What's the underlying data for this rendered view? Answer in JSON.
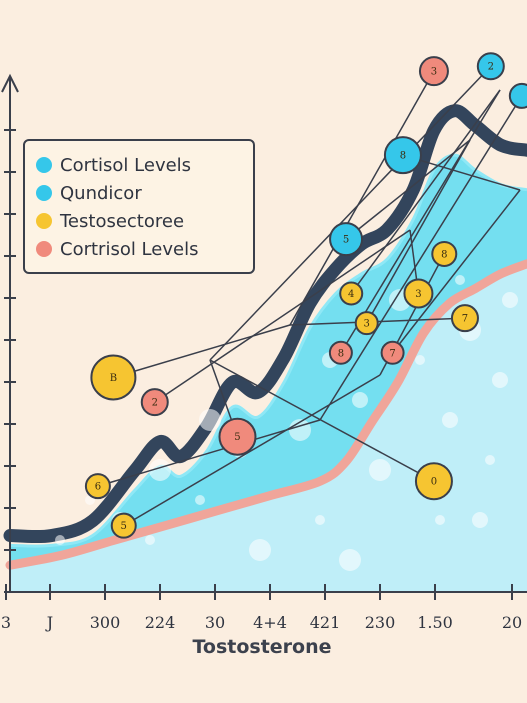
{
  "chart_data": {
    "type": "area",
    "title": "",
    "xlabel": "Tostosterone",
    "ylabel": "",
    "x_tick_labels": [
      "3",
      "J",
      "300",
      "224",
      "30",
      "4+4",
      "421",
      "230",
      "1.50",
      "20"
    ],
    "legend": {
      "placement": "top-left",
      "entries": [
        {
          "label": "Cortisol Levels",
          "color": "#35c7ea"
        },
        {
          "label": "Qundicor",
          "color": "#35c7ea"
        },
        {
          "label": "Testosectoree",
          "color": "#f6c531"
        },
        {
          "label": "Cortrisol Levels",
          "color": "#f08a7c"
        }
      ]
    },
    "x_range": [
      0,
      10
    ],
    "y_range": [
      0,
      10
    ],
    "series": [
      {
        "kind": "dark-line",
        "color": "#33455c",
        "x": [
          0,
          0.8,
          1.6,
          2.4,
          2.9,
          3.3,
          3.8,
          4.3,
          4.8,
          5.3,
          5.8,
          6.3,
          6.8,
          7.3,
          7.8,
          8.2,
          8.6,
          9.0,
          9.5,
          10
        ],
        "y": [
          0.9,
          0.9,
          1.2,
          2.2,
          2.8,
          2.5,
          3.1,
          4.0,
          3.8,
          4.5,
          5.6,
          6.3,
          6.8,
          7.1,
          7.9,
          9.1,
          9.5,
          9.2,
          8.8,
          8.7
        ]
      },
      {
        "kind": "area-top",
        "color": "#5cdcf2",
        "x": [
          0,
          0.8,
          1.6,
          2.4,
          2.9,
          3.3,
          3.8,
          4.3,
          4.8,
          5.3,
          5.8,
          6.3,
          6.8,
          7.3,
          7.8,
          8.2,
          8.6,
          9.0,
          9.5,
          10
        ],
        "y": [
          0.7,
          0.7,
          0.9,
          1.8,
          2.3,
          2.1,
          2.6,
          3.5,
          3.3,
          4.0,
          5.1,
          5.8,
          6.2,
          6.5,
          7.3,
          8.3,
          8.6,
          8.3,
          8.0,
          7.9
        ]
      },
      {
        "kind": "pink-line",
        "color": "#f0a59a",
        "x": [
          0,
          1.0,
          2.0,
          3.0,
          4.0,
          5.0,
          6.0,
          6.5,
          7.0,
          7.5,
          8.0,
          8.5,
          9.0,
          9.5,
          10
        ],
        "y": [
          0.3,
          0.5,
          0.8,
          1.1,
          1.4,
          1.7,
          2.0,
          2.4,
          3.2,
          4.0,
          5.0,
          5.6,
          5.9,
          6.2,
          6.4
        ]
      }
    ],
    "bubbles": [
      {
        "x": 2.0,
        "y": 4.1,
        "label": "B",
        "color": "#f6c531",
        "r": 22
      },
      {
        "x": 4.4,
        "y": 2.9,
        "label": "5",
        "color": "#f08a7c",
        "r": 18
      },
      {
        "x": 1.7,
        "y": 1.9,
        "label": "6",
        "color": "#f6c531",
        "r": 12
      },
      {
        "x": 2.2,
        "y": 1.1,
        "label": "5",
        "color": "#f6c531",
        "r": 12
      },
      {
        "x": 2.8,
        "y": 3.6,
        "label": "2",
        "color": "#f08a7c",
        "r": 13
      },
      {
        "x": 6.5,
        "y": 6.9,
        "label": "5",
        "color": "#35c7ea",
        "r": 16
      },
      {
        "x": 6.6,
        "y": 5.8,
        "label": "4",
        "color": "#f6c531",
        "r": 11
      },
      {
        "x": 7.6,
        "y": 8.6,
        "label": "8",
        "color": "#35c7ea",
        "r": 18
      },
      {
        "x": 8.2,
        "y": 10.3,
        "label": "3",
        "color": "#f08a7c",
        "r": 14
      },
      {
        "x": 9.3,
        "y": 10.4,
        "label": "2",
        "color": "#35c7ea",
        "r": 13
      },
      {
        "x": 9.9,
        "y": 9.8,
        "label": "",
        "color": "#35c7ea",
        "r": 12
      },
      {
        "x": 8.4,
        "y": 6.6,
        "label": "8",
        "color": "#f6c531",
        "r": 12
      },
      {
        "x": 7.9,
        "y": 5.8,
        "label": "3",
        "color": "#f6c531",
        "r": 14
      },
      {
        "x": 6.9,
        "y": 5.2,
        "label": "3",
        "color": "#f6c531",
        "r": 11
      },
      {
        "x": 6.4,
        "y": 4.6,
        "label": "8",
        "color": "#f08a7c",
        "r": 11
      },
      {
        "x": 7.4,
        "y": 4.6,
        "label": "7",
        "color": "#f08a7c",
        "r": 11
      },
      {
        "x": 8.8,
        "y": 5.3,
        "label": "7",
        "color": "#f6c531",
        "r": 13
      },
      {
        "x": 8.2,
        "y": 2.0,
        "label": "0",
        "color": "#f6c531",
        "r": 18
      }
    ]
  }
}
